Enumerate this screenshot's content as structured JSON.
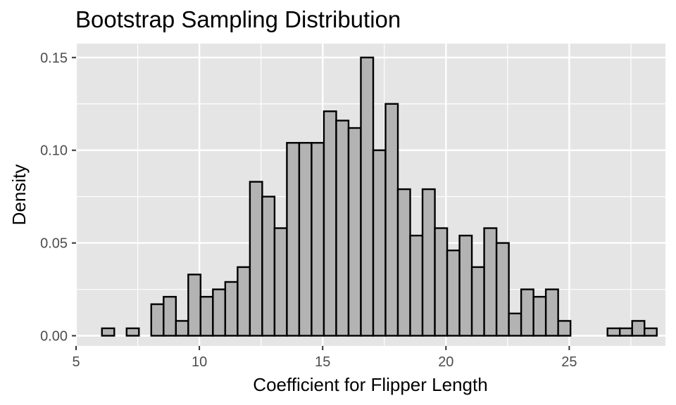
{
  "chart_data": {
    "type": "bar",
    "title": "Bootstrap Sampling Distribution",
    "xlabel": "Coefficient for Flipper Length",
    "ylabel": "Density",
    "xlim": [
      5,
      28.9
    ],
    "ylim": [
      -0.0055,
      0.1575
    ],
    "x_ticks": [
      5,
      10,
      15,
      20,
      25
    ],
    "x_tick_labels": [
      "5",
      "10",
      "15",
      "20",
      "25"
    ],
    "y_ticks": [
      0,
      0.05,
      0.1,
      0.15
    ],
    "y_tick_labels": [
      "0.00",
      "0.05",
      "0.10",
      "0.15"
    ],
    "grid": true,
    "bin_start": 6.05,
    "bin_width": 0.5,
    "values": [
      0.004,
      0,
      0.004,
      0,
      0.017,
      0.021,
      0.008,
      0.033,
      0.021,
      0.025,
      0.029,
      0.037,
      0.083,
      0.075,
      0.058,
      0.104,
      0.104,
      0.104,
      0.121,
      0.116,
      0.112,
      0.15,
      0.1,
      0.125,
      0.079,
      0.054,
      0.079,
      0.058,
      0.046,
      0.054,
      0.037,
      0.058,
      0.05,
      0.012,
      0.025,
      0.021,
      0.025,
      0.008,
      0,
      0,
      0,
      0.004,
      0.004,
      0.008,
      0.004
    ],
    "colors": {
      "panel_bg": "#e5e5e5",
      "grid": "#ffffff",
      "bar_fill": "#b3b3b3",
      "bar_stroke": "#000000",
      "tick": "#333333"
    }
  }
}
